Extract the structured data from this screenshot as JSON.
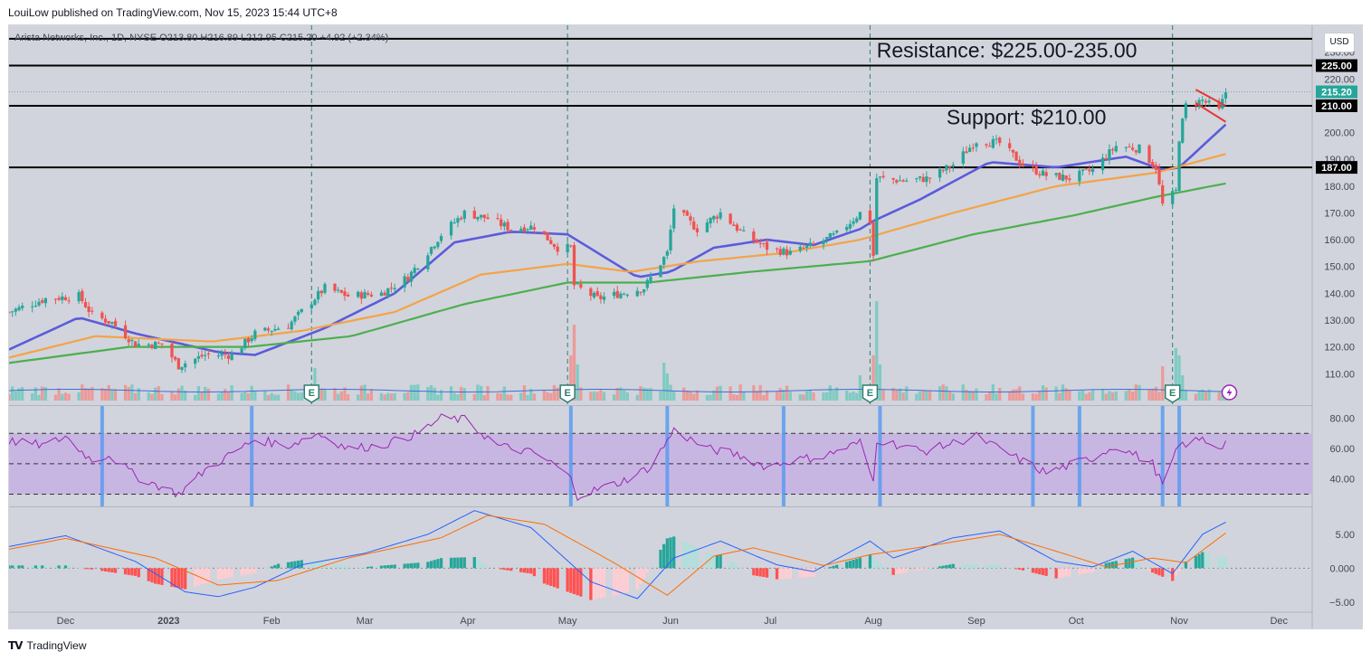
{
  "header": {
    "publisher_line": "LouiLow published on TradingView.com, Nov 15, 2023 15:44 UTC+8"
  },
  "footer": {
    "brand": "TradingView",
    "logo_text": "TV"
  },
  "currency_button": "USD",
  "colors": {
    "bg": "#d1d4dc",
    "up": "#26a69a",
    "down": "#ef5350",
    "ma_fast": "#5b5bdb",
    "ma_mid": "#f4a347",
    "ma_slow": "#4caf50",
    "rsi": "#9b27b0",
    "rsi_band": "#c8b6e2",
    "macd": "#2962ff",
    "signal": "#ff6d00",
    "vol_ma": "#3d6fd6",
    "flag": "#e53935"
  },
  "chart_data": [
    {
      "type": "candlestick",
      "title": "Arista Networks, Inc., 1D, NYSE  O213.80  H216.89  L212.95  C215.20  +4.92 (+2.34%)",
      "ylim": [
        103,
        238
      ],
      "y_ticks": [
        110,
        120,
        130,
        140,
        150,
        160,
        170,
        180,
        190,
        200,
        210,
        220,
        230
      ],
      "x_ticks": [
        {
          "label": "Dec",
          "date": "2022-12-01"
        },
        {
          "label": "2023",
          "date": "2023-01-01"
        },
        {
          "label": "Feb",
          "date": "2023-02-01"
        },
        {
          "label": "Mar",
          "date": "2023-03-01"
        },
        {
          "label": "Apr",
          "date": "2023-04-01"
        },
        {
          "label": "May",
          "date": "2023-05-01"
        },
        {
          "label": "Jun",
          "date": "2023-06-01"
        },
        {
          "label": "Jul",
          "date": "2023-07-01"
        },
        {
          "label": "Aug",
          "date": "2023-08-01"
        },
        {
          "label": "Sep",
          "date": "2023-09-01"
        },
        {
          "label": "Oct",
          "date": "2023-10-01"
        },
        {
          "label": "Nov",
          "date": "2023-11-01"
        },
        {
          "label": "Dec",
          "date": "2023-12-01"
        }
      ],
      "date_range": [
        "2022-11-14",
        "2023-12-11"
      ],
      "price_anchors": [
        [
          "2022-11-14",
          133
        ],
        [
          "2022-11-25",
          138
        ],
        [
          "2022-12-05",
          139
        ],
        [
          "2022-12-09",
          132
        ],
        [
          "2022-12-15",
          129
        ],
        [
          "2022-12-22",
          121
        ],
        [
          "2022-12-30",
          121
        ],
        [
          "2023-01-04",
          113
        ],
        [
          "2023-01-12",
          117
        ],
        [
          "2023-01-20",
          117
        ],
        [
          "2023-01-27",
          125
        ],
        [
          "2023-02-06",
          128
        ],
        [
          "2023-02-13",
          137
        ],
        [
          "2023-02-17",
          142
        ],
        [
          "2023-02-24",
          139
        ],
        [
          "2023-03-06",
          140
        ],
        [
          "2023-03-14",
          146
        ],
        [
          "2023-03-24",
          162
        ],
        [
          "2023-03-31",
          170
        ],
        [
          "2023-04-07",
          168
        ],
        [
          "2023-04-14",
          164
        ],
        [
          "2023-04-21",
          165
        ],
        [
          "2023-04-28",
          157
        ],
        [
          "2023-05-02",
          157
        ],
        [
          "2023-05-03",
          143
        ],
        [
          "2023-05-10",
          138
        ],
        [
          "2023-05-17",
          140
        ],
        [
          "2023-05-24",
          142
        ],
        [
          "2023-05-31",
          155
        ],
        [
          "2023-06-02",
          172
        ],
        [
          "2023-06-09",
          164
        ],
        [
          "2023-06-16",
          170
        ],
        [
          "2023-06-23",
          162
        ],
        [
          "2023-06-30",
          157
        ],
        [
          "2023-07-07",
          155
        ],
        [
          "2023-07-14",
          158
        ],
        [
          "2023-07-21",
          162
        ],
        [
          "2023-07-28",
          170
        ],
        [
          "2023-07-31",
          167
        ],
        [
          "2023-08-01",
          154
        ],
        [
          "2023-08-02",
          183
        ],
        [
          "2023-08-10",
          182
        ],
        [
          "2023-08-18",
          183
        ],
        [
          "2023-08-25",
          188
        ],
        [
          "2023-09-01",
          197
        ],
        [
          "2023-09-08",
          196
        ],
        [
          "2023-09-15",
          188
        ],
        [
          "2023-09-22",
          184
        ],
        [
          "2023-09-29",
          183
        ],
        [
          "2023-10-06",
          186
        ],
        [
          "2023-10-13",
          195
        ],
        [
          "2023-10-20",
          194
        ],
        [
          "2023-10-25",
          187
        ],
        [
          "2023-10-27",
          173
        ],
        [
          "2023-10-31",
          178
        ],
        [
          "2023-11-01",
          198
        ],
        [
          "2023-11-03",
          210
        ],
        [
          "2023-11-08",
          212
        ],
        [
          "2023-11-13",
          208
        ],
        [
          "2023-11-15",
          215.2
        ]
      ],
      "moving_averages": [
        {
          "color": "#5b5bdb",
          "anchors": [
            [
              "2022-11-14",
              119
            ],
            [
              "2022-12-05",
              131
            ],
            [
              "2022-12-22",
              125
            ],
            [
              "2023-01-16",
              118
            ],
            [
              "2023-01-27",
              117
            ],
            [
              "2023-02-17",
              127
            ],
            [
              "2023-03-10",
              140
            ],
            [
              "2023-03-28",
              159
            ],
            [
              "2023-04-14",
              163
            ],
            [
              "2023-05-01",
              162
            ],
            [
              "2023-05-22",
              146
            ],
            [
              "2023-06-01",
              148
            ],
            [
              "2023-06-14",
              157
            ],
            [
              "2023-06-30",
              160
            ],
            [
              "2023-07-14",
              158
            ],
            [
              "2023-07-28",
              164
            ],
            [
              "2023-08-01",
              167
            ],
            [
              "2023-08-15",
              175
            ],
            [
              "2023-09-05",
              189
            ],
            [
              "2023-09-25",
              187
            ],
            [
              "2023-10-16",
              191
            ],
            [
              "2023-10-27",
              186
            ],
            [
              "2023-11-01",
              187
            ],
            [
              "2023-11-15",
              203
            ]
          ]
        },
        {
          "color": "#f4a347",
          "anchors": [
            [
              "2022-11-14",
              116
            ],
            [
              "2022-12-10",
              124
            ],
            [
              "2023-01-14",
              122
            ],
            [
              "2023-02-10",
              126
            ],
            [
              "2023-03-10",
              133
            ],
            [
              "2023-04-05",
              147
            ],
            [
              "2023-05-01",
              151
            ],
            [
              "2023-05-20",
              148
            ],
            [
              "2023-06-10",
              152
            ],
            [
              "2023-07-05",
              155
            ],
            [
              "2023-07-28",
              160
            ],
            [
              "2023-08-25",
              170
            ],
            [
              "2023-09-25",
              180
            ],
            [
              "2023-10-25",
              185
            ],
            [
              "2023-11-15",
              192
            ]
          ]
        },
        {
          "color": "#4caf50",
          "anchors": [
            [
              "2022-11-14",
              114
            ],
            [
              "2022-12-20",
              120
            ],
            [
              "2023-01-25",
              120
            ],
            [
              "2023-02-25",
              124
            ],
            [
              "2023-03-31",
              136
            ],
            [
              "2023-05-01",
              144
            ],
            [
              "2023-05-25",
              144
            ],
            [
              "2023-06-25",
              148
            ],
            [
              "2023-07-31",
              152
            ],
            [
              "2023-08-31",
              162
            ],
            [
              "2023-09-30",
              169
            ],
            [
              "2023-10-25",
              176
            ],
            [
              "2023-11-15",
              181
            ]
          ]
        }
      ],
      "earnings_markers": [
        {
          "date": "2023-02-13",
          "label": "E"
        },
        {
          "date": "2023-05-01",
          "label": "E"
        },
        {
          "date": "2023-07-31",
          "label": "E"
        },
        {
          "date": "2023-10-30",
          "label": "E"
        }
      ],
      "horizontal_lines": [
        {
          "price": 235,
          "label": ""
        },
        {
          "price": 225,
          "label": "225.00"
        },
        {
          "price": 210,
          "label": "210.00"
        },
        {
          "price": 187,
          "label": "187.00"
        }
      ],
      "last_price": {
        "price": 215.2,
        "label": "215.20"
      },
      "annotations": [
        {
          "text": "Resistance: $225.00-235.00",
          "date": "2023-08-02",
          "price": 228
        },
        {
          "text": "Support: $210.00",
          "date": "2023-08-23",
          "price": 203
        }
      ],
      "flag_pattern": {
        "upper": [
          [
            "2023-11-06",
            216
          ],
          [
            "2023-11-15",
            210
          ]
        ],
        "lower": [
          [
            "2023-11-06",
            211
          ],
          [
            "2023-11-15",
            204
          ]
        ]
      },
      "volume_ma_note": ""
    },
    {
      "type": "line",
      "name": "RSI",
      "ylim": [
        22,
        88
      ],
      "y_ticks": [
        40,
        60,
        80
      ],
      "band": [
        30,
        70
      ],
      "midline": 50,
      "anchors": [
        [
          "2022-11-14",
          65
        ],
        [
          "2022-11-25",
          62
        ],
        [
          "2022-12-01",
          68
        ],
        [
          "2022-12-09",
          52
        ],
        [
          "2022-12-14",
          56
        ],
        [
          "2022-12-22",
          42
        ],
        [
          "2023-01-04",
          30
        ],
        [
          "2023-01-12",
          46
        ],
        [
          "2023-01-27",
          66
        ],
        [
          "2023-02-06",
          62
        ],
        [
          "2023-02-15",
          70
        ],
        [
          "2023-02-24",
          60
        ],
        [
          "2023-03-06",
          62
        ],
        [
          "2023-03-17",
          70
        ],
        [
          "2023-03-24",
          80
        ],
        [
          "2023-03-31",
          79
        ],
        [
          "2023-04-10",
          62
        ],
        [
          "2023-04-21",
          57
        ],
        [
          "2023-04-28",
          48
        ],
        [
          "2023-05-02",
          40
        ],
        [
          "2023-05-04",
          29
        ],
        [
          "2023-05-17",
          38
        ],
        [
          "2023-05-26",
          48
        ],
        [
          "2023-06-02",
          72
        ],
        [
          "2023-06-12",
          60
        ],
        [
          "2023-06-21",
          56
        ],
        [
          "2023-06-30",
          48
        ],
        [
          "2023-07-07",
          52
        ],
        [
          "2023-07-17",
          55
        ],
        [
          "2023-07-28",
          64
        ],
        [
          "2023-08-01",
          38
        ],
        [
          "2023-08-02",
          66
        ],
        [
          "2023-08-16",
          58
        ],
        [
          "2023-09-01",
          68
        ],
        [
          "2023-09-12",
          55
        ],
        [
          "2023-09-22",
          44
        ],
        [
          "2023-10-06",
          54
        ],
        [
          "2023-10-13",
          62
        ],
        [
          "2023-10-24",
          50
        ],
        [
          "2023-10-27",
          36
        ],
        [
          "2023-11-01",
          62
        ],
        [
          "2023-11-08",
          66
        ],
        [
          "2023-11-13",
          61
        ],
        [
          "2023-11-15",
          64
        ]
      ]
    },
    {
      "type": "bar+line",
      "name": "MACD",
      "ylim": [
        -6.5,
        9
      ],
      "y_ticks": [
        -5,
        0,
        5
      ],
      "macd_anchors": [
        [
          "2022-11-14",
          3.2
        ],
        [
          "2022-12-01",
          4.8
        ],
        [
          "2022-12-22",
          1.0
        ],
        [
          "2023-01-06",
          -3.5
        ],
        [
          "2023-01-16",
          -4.2
        ],
        [
          "2023-01-27",
          -2.8
        ],
        [
          "2023-02-10",
          0.5
        ],
        [
          "2023-03-01",
          2.2
        ],
        [
          "2023-03-20",
          5.0
        ],
        [
          "2023-04-03",
          8.5
        ],
        [
          "2023-04-20",
          6.0
        ],
        [
          "2023-05-08",
          -2.0
        ],
        [
          "2023-05-22",
          -4.5
        ],
        [
          "2023-06-02",
          1.5
        ],
        [
          "2023-06-16",
          4.0
        ],
        [
          "2023-07-03",
          0.5
        ],
        [
          "2023-07-14",
          -0.5
        ],
        [
          "2023-07-31",
          4.0
        ],
        [
          "2023-08-07",
          1.5
        ],
        [
          "2023-08-25",
          4.5
        ],
        [
          "2023-09-08",
          5.5
        ],
        [
          "2023-09-25",
          1.0
        ],
        [
          "2023-10-06",
          0.2
        ],
        [
          "2023-10-18",
          2.5
        ],
        [
          "2023-10-30",
          -0.8
        ],
        [
          "2023-11-08",
          5.0
        ],
        [
          "2023-11-15",
          6.8
        ]
      ],
      "signal_anchors": [
        [
          "2022-11-14",
          2.8
        ],
        [
          "2022-12-01",
          4.4
        ],
        [
          "2022-12-28",
          1.5
        ],
        [
          "2023-01-16",
          -2.5
        ],
        [
          "2023-02-03",
          -1.8
        ],
        [
          "2023-02-24",
          1.5
        ],
        [
          "2023-03-24",
          4.5
        ],
        [
          "2023-04-07",
          7.8
        ],
        [
          "2023-04-24",
          6.5
        ],
        [
          "2023-05-15",
          0.8
        ],
        [
          "2023-05-31",
          -4.0
        ],
        [
          "2023-06-14",
          1.8
        ],
        [
          "2023-06-26",
          3.0
        ],
        [
          "2023-07-17",
          0.4
        ],
        [
          "2023-07-31",
          2.0
        ],
        [
          "2023-08-14",
          3.0
        ],
        [
          "2023-09-08",
          5.0
        ],
        [
          "2023-09-25",
          2.5
        ],
        [
          "2023-10-10",
          0.2
        ],
        [
          "2023-10-24",
          1.5
        ],
        [
          "2023-11-03",
          0.8
        ],
        [
          "2023-11-15",
          5.2
        ]
      ]
    }
  ]
}
